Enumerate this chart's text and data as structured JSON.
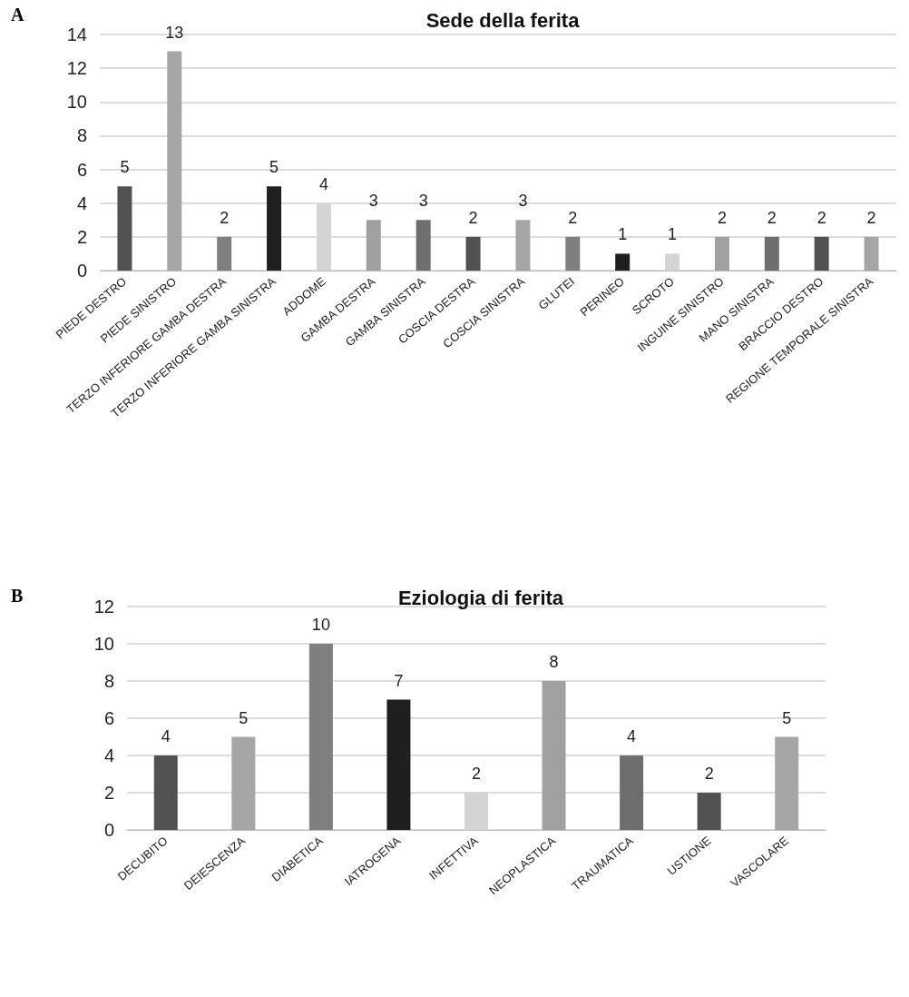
{
  "chart_data": [
    {
      "type": "bar",
      "title": "Sede della ferita",
      "annotations": [
        "A"
      ],
      "categories": [
        "PIEDE DESTRO",
        "PIEDE SINISTRO",
        "TERZO INFERIORE GAMBA DESTRA",
        "TERZO INFERIORE GAMBA SINISTRA",
        "ADDOME",
        "GAMBA DESTRA",
        "GAMBA SINISTRA",
        "COSCIA DESTRA",
        "COSCIA SINISTRA",
        "GLUTEI",
        "PERINEO",
        "SCROTO",
        "INGUINE SINISTRO",
        "MANO SINISTRA",
        "BRACCIO DESTRO",
        "REGIONE TEMPORALE SINISTRA"
      ],
      "values": [
        5,
        13,
        2,
        5,
        4,
        3,
        3,
        2,
        3,
        2,
        1,
        1,
        2,
        2,
        2,
        2
      ],
      "colors": [
        "#525252",
        "#a5a5a5",
        "#7f7f7f",
        "#1f1f1f",
        "#d4d4d4",
        "#a0a0a0",
        "#6e6e6e",
        "#525252",
        "#a5a5a5",
        "#7f7f7f",
        "#1f1f1f",
        "#d4d4d4",
        "#a0a0a0",
        "#6e6e6e",
        "#525252",
        "#a5a5a5"
      ],
      "ylim": [
        0,
        14
      ],
      "yticks": [
        0,
        2,
        4,
        6,
        8,
        10,
        12,
        14
      ],
      "grid": "y",
      "data_labels": true
    },
    {
      "type": "bar",
      "title": "Eziologia di ferita",
      "annotations": [
        "B"
      ],
      "categories": [
        "DECUBITO",
        "DEIESCENZA",
        "DIABETICA",
        "IATROGENA",
        "INFETTIVA",
        "NEOPLASTICA",
        "TRAUMATICA",
        "USTIONE",
        "VASCOLARE"
      ],
      "values": [
        4,
        5,
        10,
        7,
        2,
        8,
        4,
        2,
        5
      ],
      "colors": [
        "#525252",
        "#a5a5a5",
        "#7f7f7f",
        "#1f1f1f",
        "#d4d4d4",
        "#a0a0a0",
        "#6e6e6e",
        "#525252",
        "#a5a5a5"
      ],
      "ylim": [
        0,
        12
      ],
      "yticks": [
        0,
        2,
        4,
        6,
        8,
        10,
        12
      ],
      "grid": "y",
      "data_labels": true
    }
  ]
}
